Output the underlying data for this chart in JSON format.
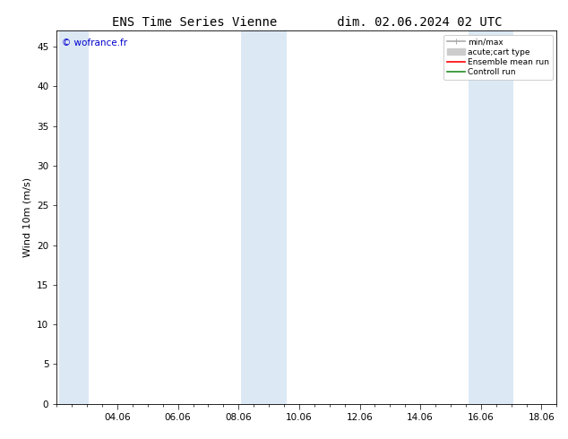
{
  "title": "ENS Time Series Vienne        dim. 02.06.2024 02 UTC",
  "ylabel": "Wind 10m (m/s)",
  "ylim": [
    0,
    47
  ],
  "yticks": [
    0,
    5,
    10,
    15,
    20,
    25,
    30,
    35,
    40,
    45
  ],
  "xtick_labels": [
    "04.06",
    "06.06",
    "08.06",
    "10.06",
    "12.06",
    "14.06",
    "16.06",
    "18.06"
  ],
  "xtick_positions_days": [
    4,
    6,
    8,
    10,
    12,
    14,
    16,
    18
  ],
  "background_color": "#ffffff",
  "plot_bg_color": "#ffffff",
  "shaded_bands": [
    {
      "x_start_day": 2.083,
      "x_end_day": 3.05,
      "color": "#dce9f5"
    },
    {
      "x_start_day": 8.083,
      "x_end_day": 9.58,
      "color": "#dce9f5"
    },
    {
      "x_start_day": 15.58,
      "x_end_day": 17.08,
      "color": "#dce9f5"
    }
  ],
  "watermark_text": "© wofrance.fr",
  "watermark_color": "#0000cc",
  "legend_items": [
    {
      "label": "min/max",
      "color": "#aaaaaa",
      "lw": 1.2
    },
    {
      "label": "acute;cart type",
      "color": "#cccccc",
      "lw": 5
    },
    {
      "label": "Ensemble mean run",
      "color": "#ff0000",
      "lw": 1.2
    },
    {
      "label": "Controll run",
      "color": "#228B22",
      "lw": 1.2
    }
  ],
  "title_fontsize": 10,
  "axis_fontsize": 8,
  "tick_fontsize": 7.5,
  "x_min": 2.083,
  "x_max": 18.33
}
